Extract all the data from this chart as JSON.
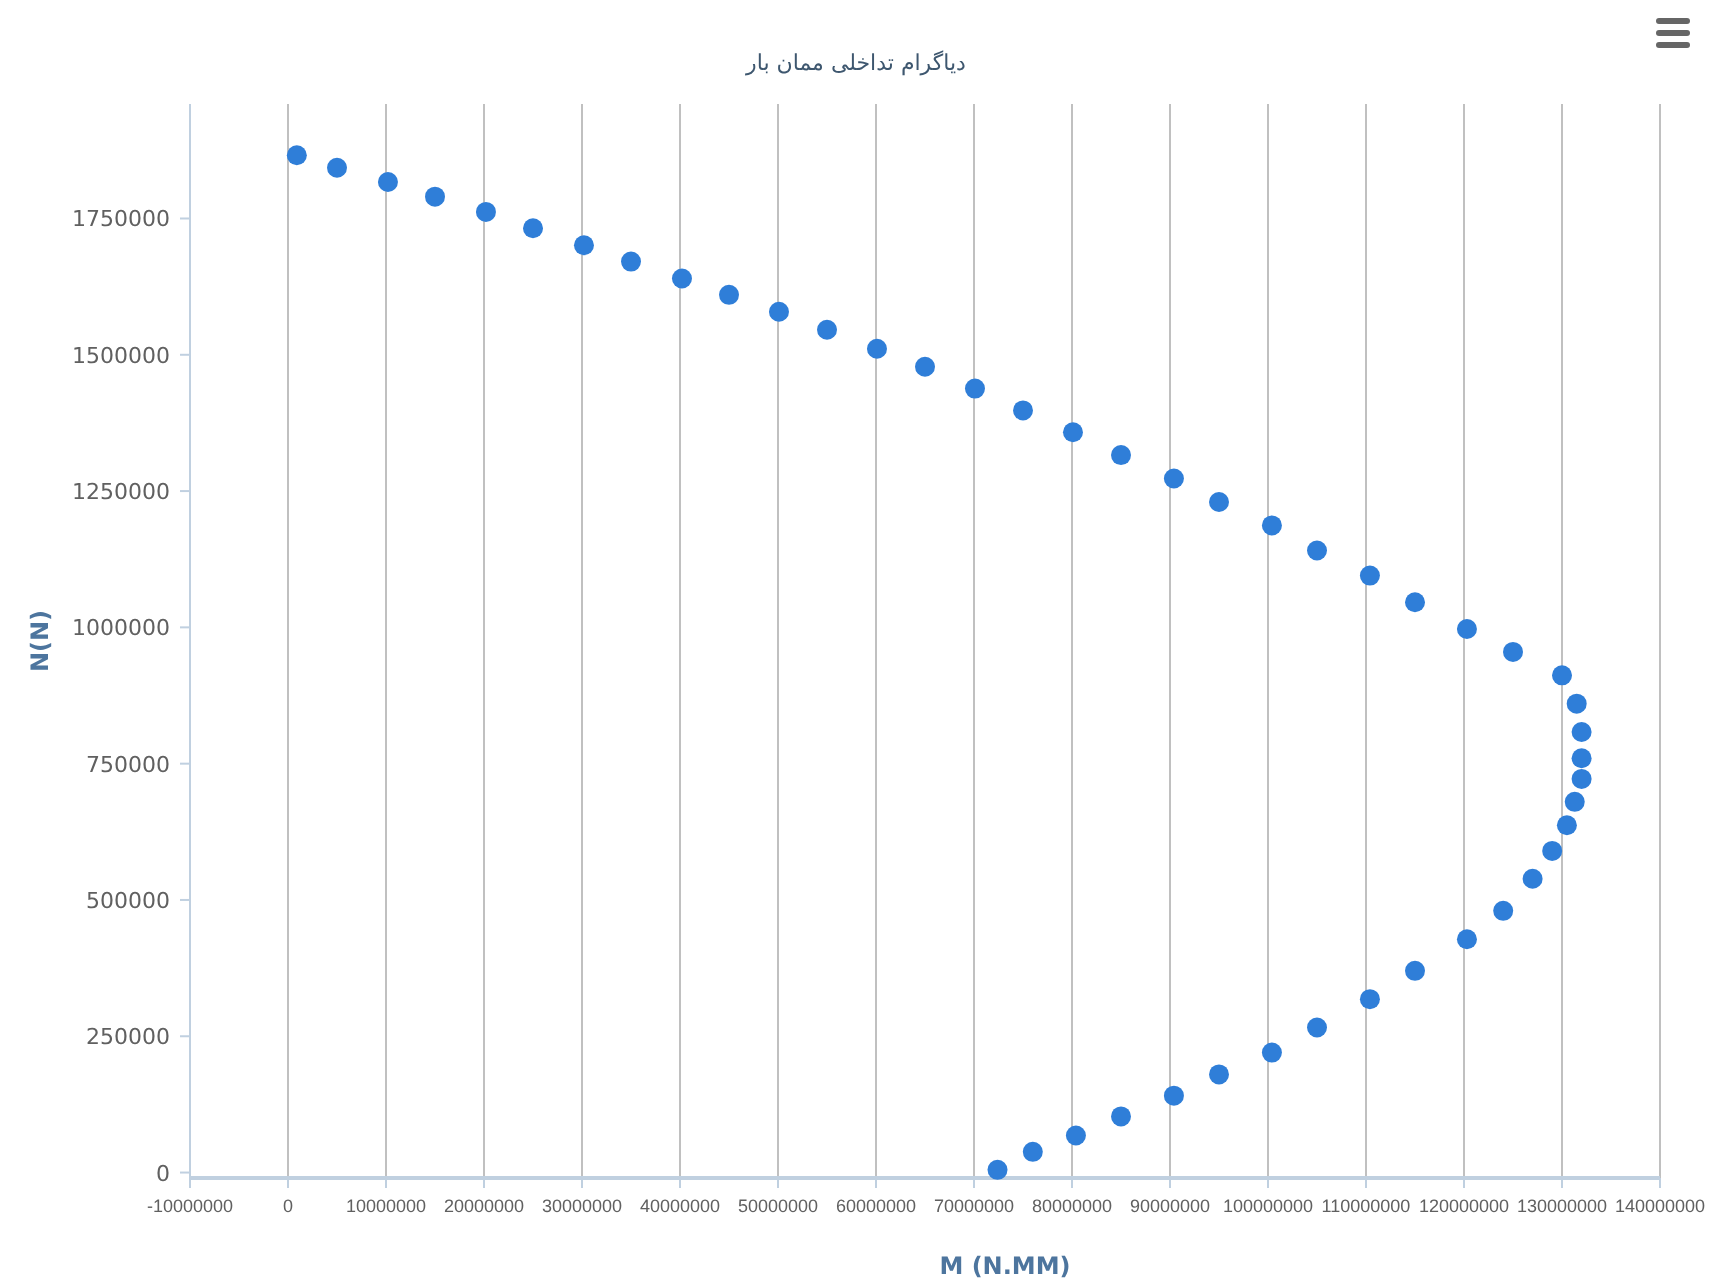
{
  "chart_data": {
    "type": "scatter",
    "title": "دیاگرام تداخلی ممان بار",
    "xlabel": "M (N.MM)",
    "ylabel": "N(N)",
    "x": [
      900000,
      5000000,
      10200000,
      15000000,
      20200000,
      25000000,
      30200000,
      35000000,
      40200000,
      45000000,
      50100000,
      55000000,
      60100000,
      65000000,
      70100000,
      75000000,
      80100000,
      85000000,
      90400000,
      95000000,
      100400000,
      105000000,
      110400000,
      115000000,
      120300000,
      125000000,
      130000000,
      131500000,
      132000000,
      132000000,
      132000000,
      131300000,
      130500000,
      129000000,
      127000000,
      124000000,
      120300000,
      115000000,
      110400000,
      105000000,
      100400000,
      95000000,
      90400000,
      85000000,
      80400000,
      76000000,
      72400000
    ],
    "values": [
      1866000,
      1843000,
      1817000,
      1790000,
      1762000,
      1732000,
      1701000,
      1671000,
      1640000,
      1610000,
      1579000,
      1546000,
      1511000,
      1478000,
      1438000,
      1398000,
      1358000,
      1316000,
      1273000,
      1230000,
      1187000,
      1141000,
      1095000,
      1046000,
      997000,
      955000,
      912000,
      860000,
      808000,
      760000,
      722000,
      680000,
      637000,
      590000,
      539000,
      480000,
      428000,
      370000,
      318000,
      266000,
      220000,
      180000,
      141000,
      103000,
      68000,
      38000,
      5000
    ],
    "color": "#2f7ed8",
    "marker": "circle",
    "grid": "x",
    "xlim": [
      -10000000,
      140000000
    ],
    "xticks": [
      -10000000,
      0,
      10000000,
      20000000,
      30000000,
      40000000,
      50000000,
      60000000,
      70000000,
      80000000,
      90000000,
      100000000,
      110000000,
      120000000,
      130000000,
      140000000
    ],
    "ylim": [
      -10000,
      1960000
    ],
    "yticks": [
      0,
      250000,
      500000,
      750000,
      1000000,
      1250000,
      1500000,
      1750000
    ]
  }
}
